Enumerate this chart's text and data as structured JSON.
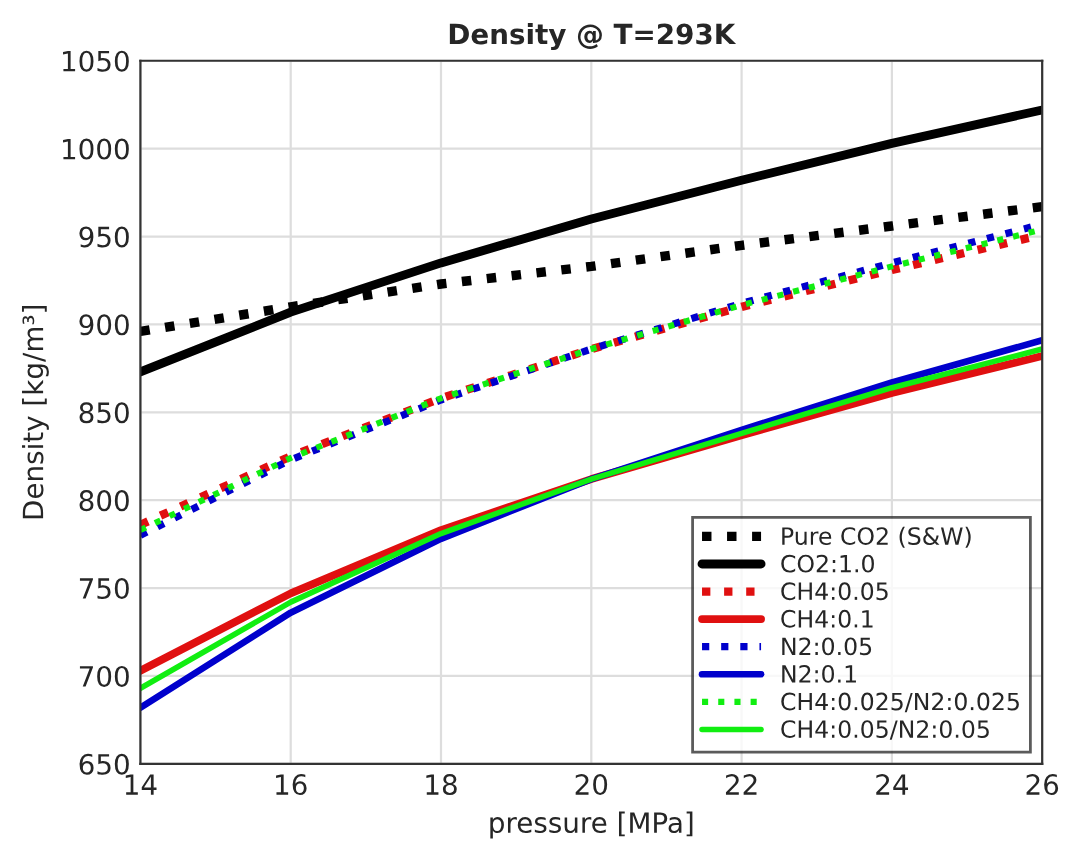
{
  "chart_data": {
    "type": "line",
    "title": "Density @ T=293K",
    "xlabel": "pressure [MPa]",
    "ylabel": "Density [kg/m³]",
    "x": [
      14,
      16,
      18,
      20,
      22,
      24,
      26
    ],
    "series": [
      {
        "name": "Pure CO2 (S&W)",
        "color": "#000000",
        "line_style": "dotted",
        "values": [
          896,
          910,
          923,
          933,
          945,
          956,
          967
        ]
      },
      {
        "name": "CO2:1.0",
        "color": "#000000",
        "line_style": "solid",
        "values": [
          873,
          907,
          935,
          960,
          982,
          1003,
          1022
        ]
      },
      {
        "name": "CH4:0.05",
        "color": "#e01010",
        "line_style": "dotted",
        "values": [
          786,
          825,
          858,
          886,
          910,
          931,
          951
        ]
      },
      {
        "name": "CH4:0.1",
        "color": "#e01010",
        "line_style": "solid",
        "values": [
          703,
          747,
          783,
          812,
          837,
          861,
          882
        ]
      },
      {
        "name": "N2:0.05",
        "color": "#0000cc",
        "line_style": "dotted",
        "values": [
          780,
          823,
          857,
          886,
          912,
          935,
          957
        ]
      },
      {
        "name": "N2:0.1",
        "color": "#0000cc",
        "line_style": "solid",
        "values": [
          682,
          736,
          778,
          812,
          840,
          867,
          891
        ]
      },
      {
        "name": "CH4:0.025/N2:0.025",
        "color": "#11ee11",
        "line_style": "dotted",
        "values": [
          783,
          824,
          858,
          886,
          911,
          933,
          954
        ]
      },
      {
        "name": "CH4:0.05/N2:0.05",
        "color": "#11ee11",
        "line_style": "solid",
        "values": [
          693,
          742,
          781,
          812,
          838,
          864,
          886
        ]
      }
    ],
    "xlim": [
      14,
      26
    ],
    "xticks": [
      14,
      16,
      18,
      20,
      22,
      24,
      26
    ],
    "ylim": [
      650,
      1050
    ],
    "yticks": [
      650,
      700,
      750,
      800,
      850,
      900,
      950,
      1000,
      1050
    ],
    "grid": true,
    "legend": "bottom right",
    "marker": "none"
  }
}
